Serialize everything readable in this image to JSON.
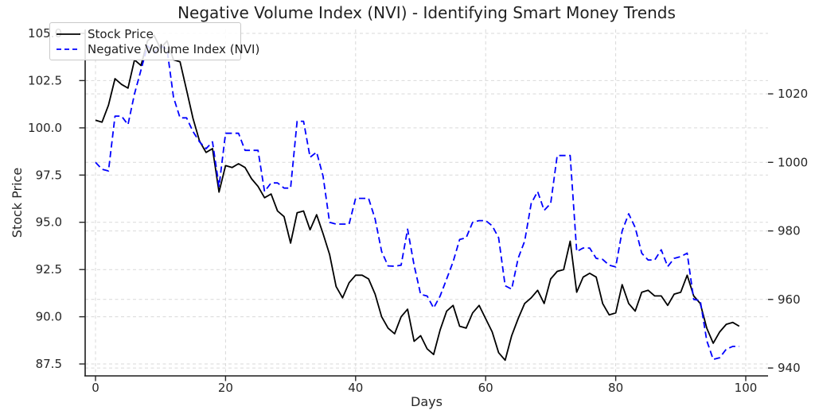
{
  "title": "Negative Volume Index (NVI) - Identifying Smart Money Trends",
  "legend": {
    "items": [
      {
        "label": "Stock Price",
        "color": "#000000",
        "line_style": "solid"
      },
      {
        "label": "Negative Volume Index (NVI)",
        "color": "#0000ff",
        "line_style": "dashed"
      }
    ],
    "position": "upper-left"
  },
  "chart_data": {
    "type": "line",
    "title": "Negative Volume Index (NVI) - Identifying Smart Money Trends",
    "xlabel": "Days",
    "ylabel": "Stock Price",
    "grid": true,
    "x_ticks": [
      0,
      20,
      40,
      60,
      80,
      100
    ],
    "x_tick_labels": [
      "0",
      "20",
      "40",
      "60",
      "80",
      "100"
    ],
    "x_range": [
      -1.59,
      103.43
    ],
    "left_axis": {
      "label": "Stock Price",
      "ticks": [
        87.5,
        90.0,
        92.5,
        95.0,
        97.5,
        100.0,
        102.5,
        105.0
      ],
      "tick_labels": [
        "87.5",
        "90.0",
        "92.5",
        "95.0",
        "97.5",
        "100.0",
        "102.5",
        "105.0"
      ],
      "range": [
        86.87,
        105.21
      ]
    },
    "right_axis": {
      "ticks": [
        940,
        960,
        980,
        1000,
        1020
      ],
      "tick_labels": [
        "940",
        "960",
        "980",
        "1000",
        "1020"
      ],
      "range": [
        937.7,
        1038.8
      ]
    },
    "x": "day index 0-99",
    "series": [
      {
        "name": "Stock Price",
        "axis": "left",
        "color": "#000000",
        "style": "solid",
        "values": [
          100.4,
          100.3,
          101.2,
          102.6,
          102.3,
          102.1,
          103.6,
          103.3,
          104.6,
          104.9,
          104.2,
          104.6,
          103.6,
          103.5,
          102.0,
          100.5,
          99.3,
          98.7,
          98.9,
          96.6,
          98.0,
          97.9,
          98.1,
          97.9,
          97.3,
          96.9,
          96.3,
          96.5,
          95.6,
          95.3,
          93.9,
          95.5,
          95.6,
          94.6,
          95.4,
          94.4,
          93.3,
          91.6,
          91.0,
          91.8,
          92.2,
          92.2,
          92.0,
          91.2,
          90.0,
          89.4,
          89.1,
          90.0,
          90.4,
          88.7,
          89.0,
          88.3,
          88.0,
          89.3,
          90.3,
          90.6,
          89.5,
          89.4,
          90.2,
          90.6,
          89.9,
          89.2,
          88.1,
          87.7,
          89.0,
          89.9,
          90.7,
          91.0,
          91.4,
          90.7,
          92.0,
          92.4,
          92.5,
          94.0,
          91.3,
          92.1,
          92.3,
          92.1,
          90.7,
          90.1,
          90.2,
          91.7,
          90.7,
          90.3,
          91.3,
          91.4,
          91.1,
          91.1,
          90.6,
          91.2,
          91.3,
          92.2,
          91.1,
          90.7,
          89.4,
          88.6,
          89.2,
          89.6,
          89.7,
          89.5
        ]
      },
      {
        "name": "Negative Volume Index (NVI)",
        "axis": "right",
        "color": "#0000ff",
        "style": "dashed",
        "values": [
          1000,
          998,
          997.5,
          1013.5,
          1013.5,
          1011,
          1020,
          1027,
          1034,
          1032,
          1034,
          1033,
          1019,
          1013,
          1013,
          1009,
          1006,
          1004,
          1006,
          993,
          1008.5,
          1008.5,
          1008.5,
          1003.5,
          1003.5,
          1003.5,
          991.5,
          994,
          994,
          992.5,
          992.5,
          1012,
          1012,
          1001.5,
          1003,
          996,
          982.5,
          982,
          982,
          982,
          989.5,
          989.5,
          989.5,
          983.5,
          974,
          969.8,
          969.7,
          970,
          980.5,
          970,
          961.5,
          961,
          957.5,
          961,
          966,
          971,
          977.5,
          978,
          982.5,
          983,
          983,
          981.5,
          978,
          964,
          963,
          972,
          977,
          988,
          991.5,
          986,
          988,
          1002,
          1002,
          1002,
          974,
          975,
          975,
          972,
          971.7,
          970,
          969.5,
          980,
          985,
          981,
          973.5,
          971.5,
          971.5,
          974.5,
          969.6,
          972,
          972.5,
          973.5,
          960,
          959.7,
          948,
          942.5,
          943,
          945.5,
          946.3,
          946.3
        ]
      }
    ]
  }
}
